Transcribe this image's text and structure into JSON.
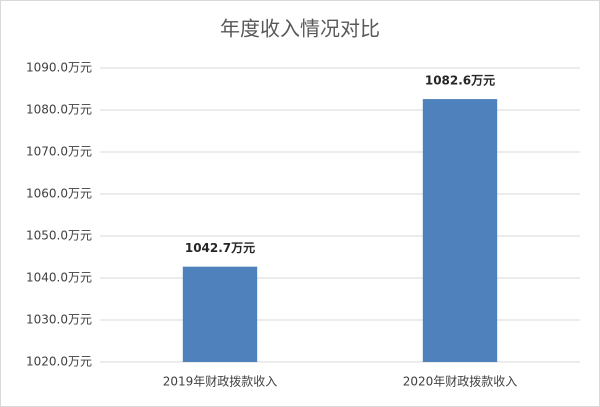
{
  "chart_data": {
    "type": "bar",
    "title": "年度收入情况对比",
    "categories": [
      "2019年财政拨款收入",
      "2020年财政拨款收入"
    ],
    "values": [
      1042.7,
      1082.6
    ],
    "value_labels": [
      "1042.7万元",
      "1082.6万元"
    ],
    "color": "#4f81bd",
    "ylim": [
      1020,
      1090
    ],
    "yticks": [
      {
        "value": 1020,
        "label": "1020.0万元"
      },
      {
        "value": 1030,
        "label": "1030.0万元"
      },
      {
        "value": 1040,
        "label": "1040.0万元"
      },
      {
        "value": 1050,
        "label": "1050.0万元"
      },
      {
        "value": 1060,
        "label": "1060.0万元"
      },
      {
        "value": 1070,
        "label": "1070.0万元"
      },
      {
        "value": 1080,
        "label": "1080.0万元"
      },
      {
        "value": 1090,
        "label": "1090.0万元"
      }
    ],
    "grid": true
  }
}
